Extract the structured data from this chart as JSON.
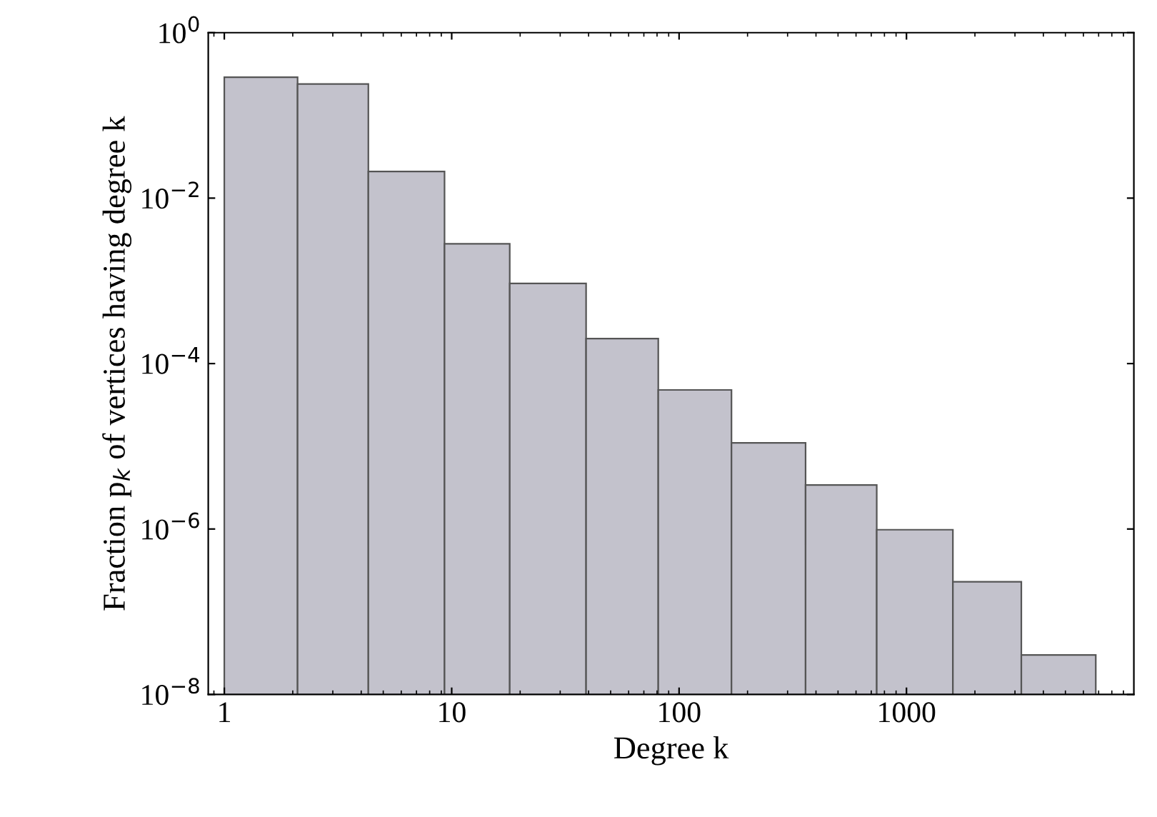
{
  "chart_data": {
    "type": "histogram",
    "xlabel": "Degree k",
    "ylabel": "Fraction p$_{k}$ of vertices having degree k",
    "log": "xy",
    "bins": [
      1,
      2.1,
      4.3,
      9.3,
      18,
      39,
      81,
      170,
      360,
      740,
      1600,
      3200,
      6800
    ],
    "values": [
      0.29,
      0.24,
      0.021,
      0.0028,
      0.00093,
      0.0002,
      4.8e-05,
      1.1e-05,
      3.4e-06,
      9.8e-07,
      2.3e-07,
      3e-08
    ],
    "color": "#c3c2cc",
    "xlim": [
      0.85,
      10000
    ],
    "ylim": [
      1e-08,
      1
    ],
    "xticks": [
      1,
      10,
      100,
      1000
    ],
    "yticks": [
      {
        "value": 1,
        "label": "10$^{0}$"
      },
      {
        "value": 0.01,
        "label": "10$^{−2}$"
      },
      {
        "value": 0.0001,
        "label": "10$^{−4}$"
      },
      {
        "value": 1e-06,
        "label": "10$^{−6}$"
      },
      {
        "value": 1e-08,
        "label": "10$^{−8}$"
      }
    ],
    "grid": false,
    "legend": false
  }
}
